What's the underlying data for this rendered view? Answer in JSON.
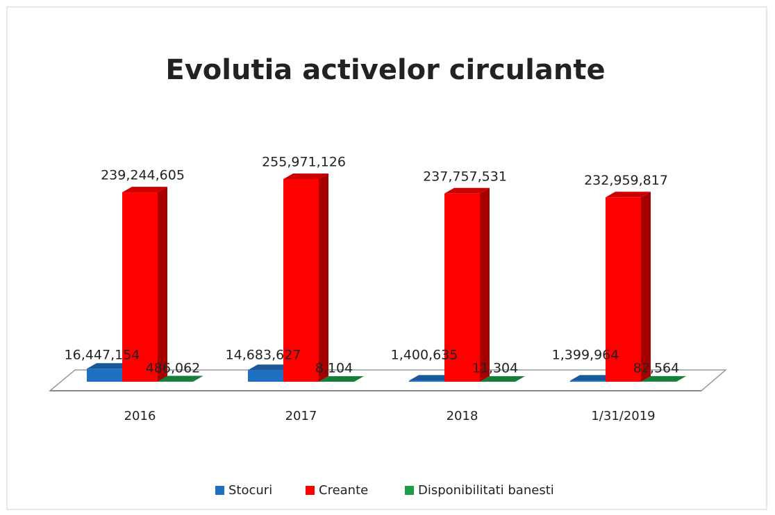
{
  "chart_data": {
    "type": "bar3d",
    "title": "Evolutia activelor circulante",
    "categories": [
      "2016",
      "2017",
      "2018",
      "1/31/2019"
    ],
    "series": [
      {
        "name": "Stocuri",
        "color": "#1f6fc0",
        "values": [
          16447154,
          14683627,
          1400635,
          1399964
        ],
        "value_labels": [
          "16,447,154",
          "14,683,627",
          "1,400,635",
          "1,399,964"
        ]
      },
      {
        "name": "Creante",
        "color": "#ff0000",
        "values": [
          239244605,
          255971126,
          237757531,
          232959817
        ],
        "value_labels": [
          "239,244,605",
          "255,971,126",
          "237,757,531",
          "232,959,817"
        ]
      },
      {
        "name": "Disponibilitati banesti",
        "color": "#1a9e4a",
        "values": [
          486062,
          8104,
          11304,
          82564
        ],
        "value_labels": [
          "486,062",
          "8,104",
          "11,304",
          "82,564"
        ]
      }
    ],
    "legend": "bottom"
  }
}
